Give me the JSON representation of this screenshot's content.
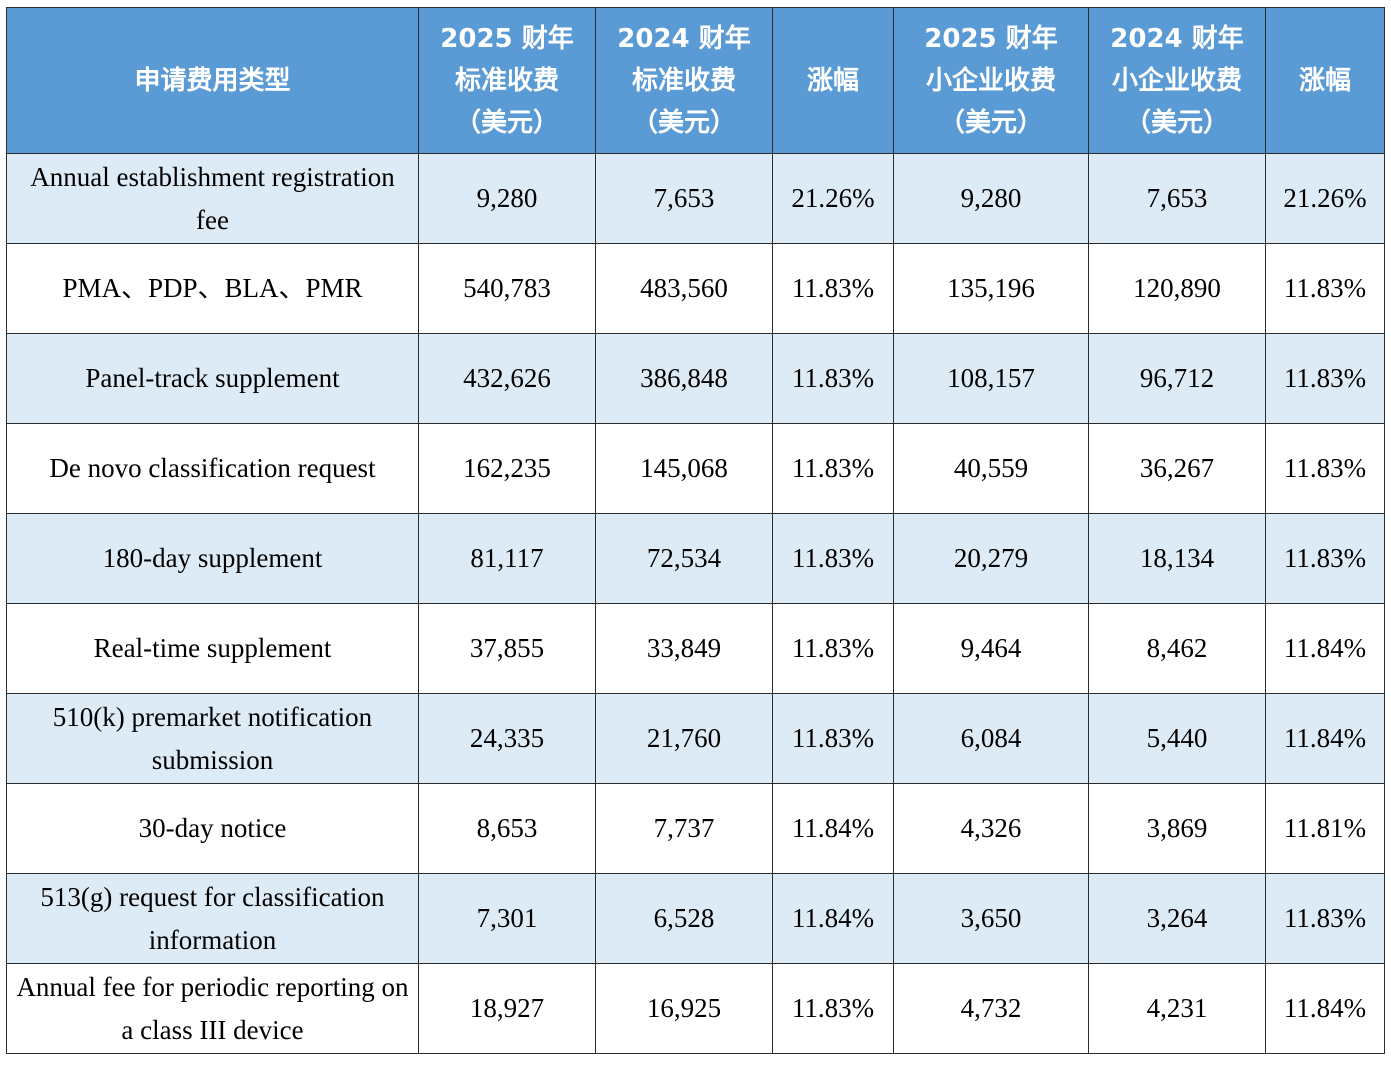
{
  "headers": [
    "申请费用类型",
    "2025 财年\n标准收费\n（美元）",
    "2024 财年\n标准收费\n（美元）",
    "涨幅",
    "2025 财年\n小企业收费\n（美元）",
    "2024 财年\n小企业收费\n（美元）",
    "涨幅"
  ],
  "rows": [
    [
      "Annual establishment registration fee",
      "9,280",
      "7,653",
      "21.26%",
      "9,280",
      "7,653",
      "21.26%"
    ],
    [
      "PMA、PDP、BLA、PMR",
      "540,783",
      "483,560",
      "11.83%",
      "135,196",
      "120,890",
      "11.83%"
    ],
    [
      "Panel-track supplement",
      "432,626",
      "386,848",
      "11.83%",
      "108,157",
      "96,712",
      "11.83%"
    ],
    [
      "De novo classification request",
      "162,235",
      "145,068",
      "11.83%",
      "40,559",
      "36,267",
      "11.83%"
    ],
    [
      "180-day supplement",
      "81,117",
      "72,534",
      "11.83%",
      "20,279",
      "18,134",
      "11.83%"
    ],
    [
      "Real-time supplement",
      "37,855",
      "33,849",
      "11.83%",
      "9,464",
      "8,462",
      "11.84%"
    ],
    [
      "510(k) premarket notification submission",
      "24,335",
      "21,760",
      "11.83%",
      "6,084",
      "5,440",
      "11.84%"
    ],
    [
      "30-day notice",
      "8,653",
      "7,737",
      "11.84%",
      "4,326",
      "3,869",
      "11.81%"
    ],
    [
      "513(g) request for classification information",
      "7,301",
      "6,528",
      "11.84%",
      "3,650",
      "3,264",
      "11.83%"
    ],
    [
      "Annual fee for periodic reporting on a class III device",
      "18,927",
      "16,925",
      "11.83%",
      "4,732",
      "4,231",
      "11.84%"
    ]
  ]
}
